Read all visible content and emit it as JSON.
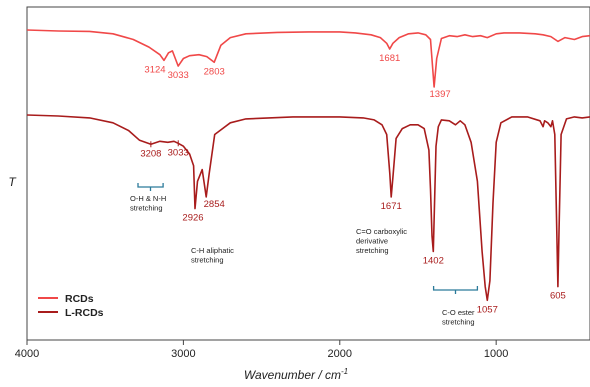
{
  "chart_data": {
    "type": "line",
    "xlabel": "Wavenumber / cm",
    "xlabel_superscript": "-1",
    "ylabel": "T",
    "xlim": [
      4000,
      400
    ],
    "x_reversed": true,
    "x_ticks": [
      4000,
      3000,
      2000,
      1000
    ],
    "y_tick_labels_shown": false,
    "grid": false,
    "legend_position": "bottom-left",
    "series": [
      {
        "name": "RCDs",
        "color": "#f04848",
        "points": [
          [
            4000,
            100
          ],
          [
            3800,
            99
          ],
          [
            3600,
            98.5
          ],
          [
            3450,
            96
          ],
          [
            3320,
            90
          ],
          [
            3220,
            82
          ],
          [
            3150,
            74
          ],
          [
            3124,
            68
          ],
          [
            3095,
            76
          ],
          [
            3070,
            78
          ],
          [
            3033,
            62
          ],
          [
            3000,
            70
          ],
          [
            2960,
            73
          ],
          [
            2900,
            74
          ],
          [
            2850,
            72
          ],
          [
            2803,
            66
          ],
          [
            2760,
            84
          ],
          [
            2700,
            92
          ],
          [
            2600,
            96
          ],
          [
            2400,
            97.5
          ],
          [
            2200,
            98
          ],
          [
            2000,
            98
          ],
          [
            1900,
            97
          ],
          [
            1800,
            95
          ],
          [
            1740,
            92
          ],
          [
            1700,
            86
          ],
          [
            1681,
            80
          ],
          [
            1660,
            86
          ],
          [
            1620,
            92
          ],
          [
            1560,
            96
          ],
          [
            1500,
            97
          ],
          [
            1450,
            95
          ],
          [
            1420,
            90
          ],
          [
            1397,
            40
          ],
          [
            1380,
            70
          ],
          [
            1350,
            91
          ],
          [
            1300,
            94
          ],
          [
            1250,
            93
          ],
          [
            1200,
            95
          ],
          [
            1150,
            93
          ],
          [
            1100,
            94
          ],
          [
            1057,
            92
          ],
          [
            1000,
            96
          ],
          [
            950,
            97
          ],
          [
            850,
            97
          ],
          [
            750,
            96
          ],
          [
            700,
            95
          ],
          [
            650,
            93
          ],
          [
            605,
            88
          ],
          [
            560,
            92
          ],
          [
            500,
            90
          ],
          [
            450,
            93
          ],
          [
            400,
            94
          ]
        ]
      },
      {
        "name": "L-RCDs",
        "color": "#a81c1c",
        "points": [
          [
            4000,
            100
          ],
          [
            3800,
            99.5
          ],
          [
            3600,
            98.5
          ],
          [
            3450,
            96
          ],
          [
            3350,
            92
          ],
          [
            3280,
            87
          ],
          [
            3208,
            85
          ],
          [
            3150,
            86.5
          ],
          [
            3100,
            86
          ],
          [
            3060,
            86.5
          ],
          [
            3033,
            85.5
          ],
          [
            3000,
            84
          ],
          [
            2960,
            80
          ],
          [
            2935,
            74
          ],
          [
            2926,
            52
          ],
          [
            2910,
            66
          ],
          [
            2880,
            72
          ],
          [
            2865,
            64
          ],
          [
            2854,
            58
          ],
          [
            2835,
            70
          ],
          [
            2800,
            90
          ],
          [
            2700,
            96
          ],
          [
            2600,
            98
          ],
          [
            2300,
            99
          ],
          [
            2000,
            99
          ],
          [
            1850,
            98.5
          ],
          [
            1780,
            97.5
          ],
          [
            1730,
            95
          ],
          [
            1700,
            90
          ],
          [
            1680,
            70
          ],
          [
            1671,
            58
          ],
          [
            1660,
            68
          ],
          [
            1640,
            88
          ],
          [
            1600,
            93
          ],
          [
            1550,
            95
          ],
          [
            1500,
            95
          ],
          [
            1460,
            93
          ],
          [
            1430,
            82
          ],
          [
            1420,
            62
          ],
          [
            1410,
            38
          ],
          [
            1402,
            30
          ],
          [
            1397,
            46
          ],
          [
            1385,
            84
          ],
          [
            1370,
            94
          ],
          [
            1350,
            97.5
          ],
          [
            1300,
            97
          ],
          [
            1260,
            95
          ],
          [
            1230,
            97
          ],
          [
            1200,
            95
          ],
          [
            1160,
            86
          ],
          [
            1120,
            66
          ],
          [
            1090,
            30
          ],
          [
            1070,
            12
          ],
          [
            1057,
            5
          ],
          [
            1040,
            15
          ],
          [
            1020,
            55
          ],
          [
            1000,
            86
          ],
          [
            970,
            96
          ],
          [
            900,
            99
          ],
          [
            800,
            99
          ],
          [
            720,
            97
          ],
          [
            700,
            94
          ],
          [
            690,
            97
          ],
          [
            670,
            96
          ],
          [
            650,
            94
          ],
          [
            640,
            97
          ],
          [
            625,
            90
          ],
          [
            612,
            40
          ],
          [
            605,
            12
          ],
          [
            598,
            40
          ],
          [
            585,
            90
          ],
          [
            550,
            98
          ],
          [
            500,
            99
          ],
          [
            450,
            98.5
          ],
          [
            400,
            99
          ]
        ]
      }
    ],
    "peak_labels": [
      {
        "series": "RCDs",
        "x": 3124,
        "text": "3124"
      },
      {
        "series": "RCDs",
        "x": 3033,
        "text": "3033"
      },
      {
        "series": "RCDs",
        "x": 2803,
        "text": "2803"
      },
      {
        "series": "RCDs",
        "x": 1681,
        "text": "1681"
      },
      {
        "series": "RCDs",
        "x": 1397,
        "text": "1397"
      },
      {
        "series": "L-RCDs",
        "x": 3208,
        "text": "3208"
      },
      {
        "series": "L-RCDs",
        "x": 3033,
        "text": "3033"
      },
      {
        "series": "L-RCDs",
        "x": 2926,
        "text": "2926"
      },
      {
        "series": "L-RCDs",
        "x": 2854,
        "text": "2854"
      },
      {
        "series": "L-RCDs",
        "x": 1671,
        "text": "1671"
      },
      {
        "series": "L-RCDs",
        "x": 1402,
        "text": "1402"
      },
      {
        "series": "L-RCDs",
        "x": 1057,
        "text": "1057"
      },
      {
        "series": "L-RCDs",
        "x": 605,
        "text": "605"
      }
    ],
    "annotations": [
      {
        "lines": [
          "O-H & N-H",
          "stretching"
        ],
        "bracket_x": [
          3290,
          3130
        ]
      },
      {
        "lines": [
          "C-H aliphatic",
          "stretching"
        ]
      },
      {
        "lines": [
          "C=O carboxylic",
          "derivative",
          "stretching"
        ]
      },
      {
        "lines": [
          "C-O ester",
          "stretching"
        ],
        "bracket_x": [
          1400,
          1120
        ]
      }
    ]
  }
}
